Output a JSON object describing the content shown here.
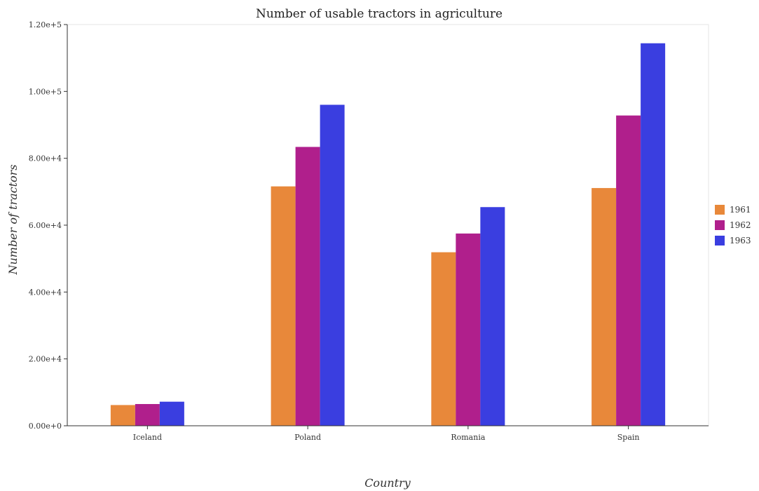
{
  "chart_data": {
    "type": "bar",
    "title": "Number of usable tractors in agriculture",
    "xlabel": "Country",
    "ylabel": "Number of tractors",
    "categories": [
      "Iceland",
      "Poland",
      "Romania",
      "Spain"
    ],
    "series": [
      {
        "name": "1961",
        "color": "#e8883a",
        "values": [
          6200,
          71600,
          51900,
          71100
        ]
      },
      {
        "name": "1962",
        "color": "#b01f8c",
        "values": [
          6500,
          83400,
          57500,
          92800
        ]
      },
      {
        "name": "1963",
        "color": "#3a3ee0",
        "values": [
          7200,
          96000,
          65400,
          114400
        ]
      }
    ],
    "ylim": [
      0,
      120000
    ],
    "yticks": [
      "0.00e+0",
      "2.00e+4",
      "4.00e+4",
      "6.00e+4",
      "8.00e+4",
      "1.00e+5",
      "1.20e+5"
    ],
    "ytick_values": [
      0,
      20000,
      40000,
      60000,
      80000,
      100000,
      120000
    ],
    "legend_position": "right",
    "grid": false
  }
}
